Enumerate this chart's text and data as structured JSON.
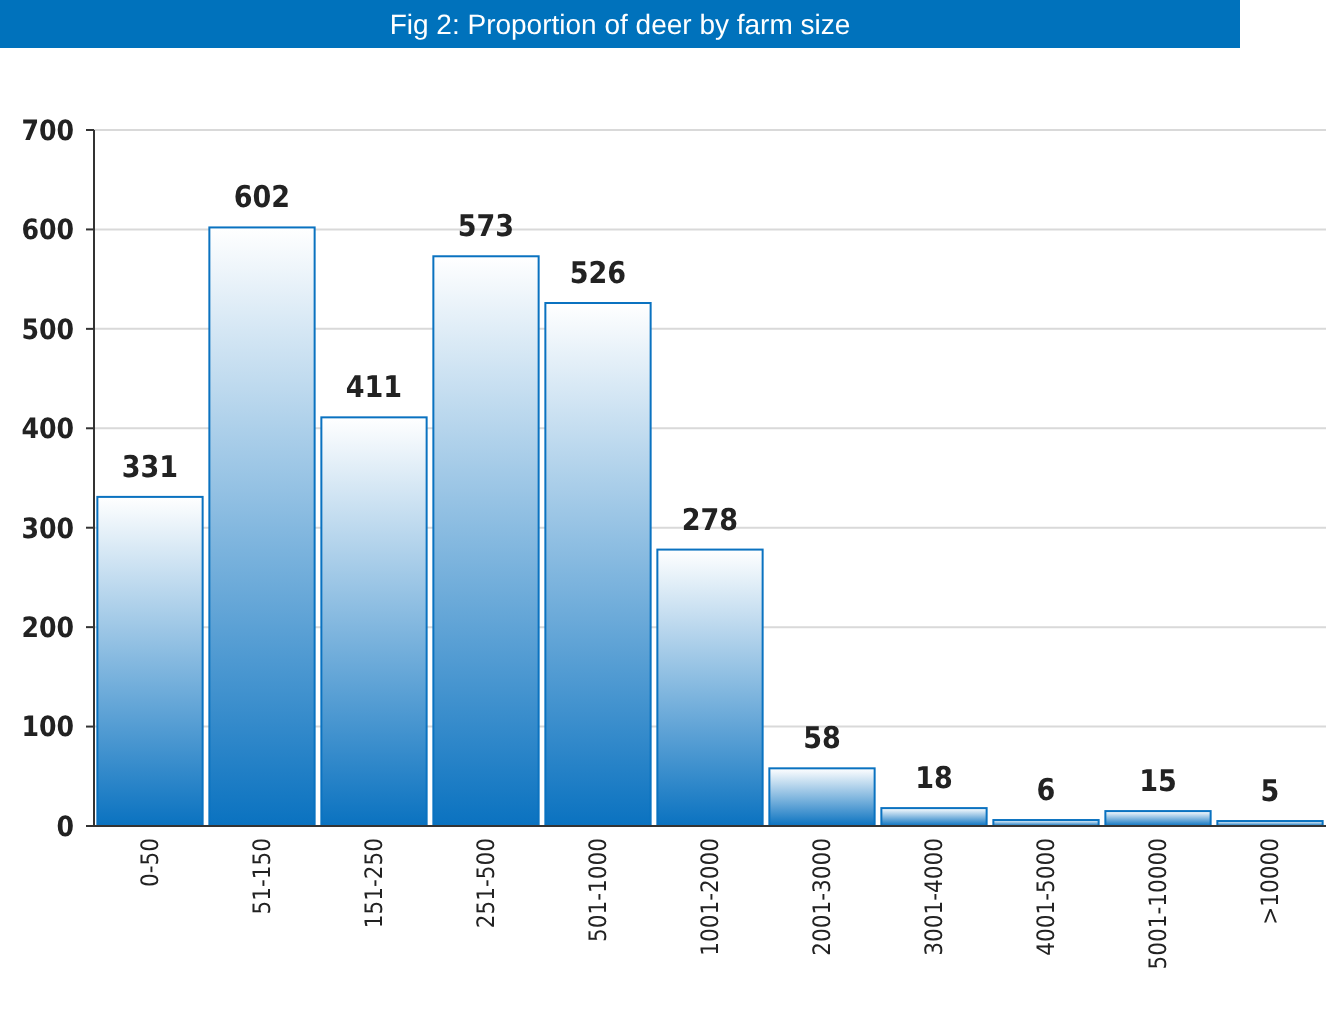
{
  "chart_data": {
    "type": "bar",
    "title": "Fig 2: Proportion of deer by farm size",
    "categories": [
      "0-50",
      "51-150",
      "151-250",
      "251-500",
      "501-1000",
      "1001-2000",
      "2001-3000",
      "3001-4000",
      "4001-5000",
      "5001-10000",
      ">10000"
    ],
    "values": [
      331,
      602,
      411,
      573,
      526,
      278,
      58,
      18,
      6,
      15,
      5
    ],
    "color": "#0a72c0",
    "ylim": [
      0,
      700
    ],
    "yticks": [
      0,
      100,
      200,
      300,
      400,
      500,
      600,
      700
    ],
    "grid": "y",
    "data_labels": true
  }
}
